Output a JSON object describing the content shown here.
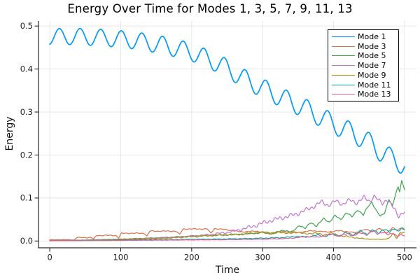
{
  "chart_data": {
    "type": "line",
    "title": "Energy Over Time for Modes 1, 3, 5, 7, 9, 11, 13",
    "xlabel": "Time",
    "ylabel": "Energy",
    "xlim": [
      -15.9,
      516.9
    ],
    "ylim": [
      -0.0158,
      0.5117
    ],
    "grid": true,
    "legend_position": "top-right",
    "xticks": {
      "values": [
        0,
        100,
        200,
        300,
        400,
        500
      ],
      "labels": [
        "0",
        "100",
        "200",
        "300",
        "400",
        "500"
      ]
    },
    "yticks": {
      "values": [
        0.0,
        0.1,
        0.2,
        0.3,
        0.4,
        0.5
      ],
      "labels": [
        "0.0",
        "0.1",
        "0.2",
        "0.3",
        "0.4",
        "0.5"
      ]
    },
    "colors": {
      "grid": "#e4e4e4",
      "spine": "#262626",
      "tick_text": "#1c1c1c",
      "title_text": "#000000"
    },
    "series": [
      {
        "name": "Mode 1",
        "color": "#009AFA",
        "width": 1.7,
        "seed": 1,
        "noise": 0,
        "noise_ref": 1,
        "osc": {
          "amplitude0": 0.0185,
          "amplitude_slope": 1.2e-05,
          "period": 29.1,
          "phase": -1
        },
        "points": [
          [
            0,
            0.4755
          ],
          [
            40,
            0.4755
          ],
          [
            80,
            0.4725
          ],
          [
            120,
            0.4665
          ],
          [
            160,
            0.4555
          ],
          [
            200,
            0.4395
          ],
          [
            240,
            0.411
          ],
          [
            280,
            0.372
          ],
          [
            320,
            0.339
          ],
          [
            360,
            0.308
          ],
          [
            400,
            0.2725
          ],
          [
            440,
            0.2405
          ],
          [
            480,
            0.1925
          ],
          [
            500,
            0.178
          ]
        ]
      },
      {
        "name": "Mode 3",
        "color": "#E26E46",
        "width": 1.2,
        "seed": 2,
        "noise": 0.0012,
        "noise_ref": 0.01,
        "points": [
          [
            0,
            0.003
          ],
          [
            30,
            0.003
          ],
          [
            34,
            0.002
          ],
          [
            38,
            0.008
          ],
          [
            58,
            0.008
          ],
          [
            62,
            0.005
          ],
          [
            66,
            0.013
          ],
          [
            93,
            0.013
          ],
          [
            97,
            0.007
          ],
          [
            101,
            0.018
          ],
          [
            133,
            0.018
          ],
          [
            137,
            0.011
          ],
          [
            141,
            0.023
          ],
          [
            178,
            0.023
          ],
          [
            183,
            0.015
          ],
          [
            188,
            0.028
          ],
          [
            222,
            0.028
          ],
          [
            227,
            0.018
          ],
          [
            232,
            0.029
          ],
          [
            250,
            0.026
          ],
          [
            270,
            0.021
          ],
          [
            290,
            0.023
          ],
          [
            310,
            0.019
          ],
          [
            330,
            0.022
          ],
          [
            350,
            0.02
          ],
          [
            370,
            0.024
          ],
          [
            390,
            0.021
          ],
          [
            410,
            0.024
          ],
          [
            430,
            0.019
          ],
          [
            445,
            0.027
          ],
          [
            455,
            0.022
          ],
          [
            465,
            0.029
          ],
          [
            475,
            0.019
          ],
          [
            483,
            0.031
          ],
          [
            490,
            0.024
          ],
          [
            495,
            0.031
          ],
          [
            500,
            0.026
          ]
        ]
      },
      {
        "name": "Mode 5",
        "color": "#3DA44D",
        "width": 1.2,
        "seed": 3,
        "noise": 0.002,
        "noise_ref": 0.02,
        "points": [
          [
            0,
            0.001
          ],
          [
            40,
            0.002
          ],
          [
            80,
            0.0035
          ],
          [
            120,
            0.0055
          ],
          [
            160,
            0.008
          ],
          [
            200,
            0.0115
          ],
          [
            240,
            0.0135
          ],
          [
            270,
            0.0155
          ],
          [
            300,
            0.02
          ],
          [
            315,
            0.018
          ],
          [
            330,
            0.025
          ],
          [
            342,
            0.021
          ],
          [
            352,
            0.037
          ],
          [
            360,
            0.029
          ],
          [
            368,
            0.043
          ],
          [
            376,
            0.035
          ],
          [
            386,
            0.052
          ],
          [
            394,
            0.044
          ],
          [
            402,
            0.059
          ],
          [
            410,
            0.05
          ],
          [
            418,
            0.066
          ],
          [
            426,
            0.056
          ],
          [
            434,
            0.073
          ],
          [
            442,
            0.06
          ],
          [
            448,
            0.079
          ],
          [
            454,
            0.091
          ],
          [
            460,
            0.071
          ],
          [
            466,
            0.057
          ],
          [
            472,
            0.066
          ],
          [
            478,
            0.098
          ],
          [
            483,
            0.081
          ],
          [
            487,
            0.106
          ],
          [
            491,
            0.126
          ],
          [
            493,
            0.116
          ],
          [
            496,
            0.141
          ],
          [
            500,
            0.12
          ]
        ]
      },
      {
        "name": "Mode 7",
        "color": "#C271D2",
        "width": 1.2,
        "seed": 4,
        "noise": 0.0055,
        "noise_ref": 0.04,
        "points": [
          [
            0,
            0.001
          ],
          [
            60,
            0.002
          ],
          [
            120,
            0.0045
          ],
          [
            180,
            0.009
          ],
          [
            220,
            0.014
          ],
          [
            250,
            0.02
          ],
          [
            270,
            0.027
          ],
          [
            290,
            0.036
          ],
          [
            310,
            0.047
          ],
          [
            330,
            0.055
          ],
          [
            350,
            0.064
          ],
          [
            368,
            0.077
          ],
          [
            383,
            0.091
          ],
          [
            393,
            0.083
          ],
          [
            403,
            0.093
          ],
          [
            413,
            0.086
          ],
          [
            423,
            0.095
          ],
          [
            433,
            0.089
          ],
          [
            443,
            0.101
          ],
          [
            451,
            0.093
          ],
          [
            457,
            0.104
          ],
          [
            463,
            0.095
          ],
          [
            469,
            0.088
          ],
          [
            475,
            0.097
          ],
          [
            481,
            0.084
          ],
          [
            487,
            0.071
          ],
          [
            492,
            0.058
          ],
          [
            496,
            0.065
          ],
          [
            500,
            0.066
          ]
        ]
      },
      {
        "name": "Mode 9",
        "color": "#AC8D18",
        "width": 1.2,
        "seed": 5,
        "noise": 0.002,
        "noise_ref": 0.012,
        "points": [
          [
            0,
            0.001
          ],
          [
            60,
            0.002
          ],
          [
            120,
            0.004
          ],
          [
            160,
            0.006
          ],
          [
            200,
            0.01
          ],
          [
            240,
            0.014
          ],
          [
            265,
            0.0155
          ],
          [
            285,
            0.018
          ],
          [
            300,
            0.02
          ],
          [
            313,
            0.016
          ],
          [
            325,
            0.021
          ],
          [
            337,
            0.017
          ],
          [
            349,
            0.021
          ],
          [
            361,
            0.016
          ],
          [
            373,
            0.019
          ],
          [
            385,
            0.014
          ],
          [
            397,
            0.018
          ],
          [
            409,
            0.012
          ],
          [
            421,
            0.01
          ],
          [
            433,
            0.007
          ],
          [
            445,
            0.005
          ],
          [
            457,
            0.004
          ],
          [
            469,
            0.004
          ],
          [
            478,
            0.006
          ],
          [
            484,
            0.017
          ],
          [
            489,
            0.007
          ],
          [
            494,
            0.02
          ],
          [
            500,
            0.018
          ]
        ]
      },
      {
        "name": "Mode 11",
        "color": "#00A9AD",
        "width": 1.2,
        "seed": 6,
        "noise": 0.0022,
        "noise_ref": 0.015,
        "points": [
          [
            0,
            0.0008
          ],
          [
            80,
            0.0018
          ],
          [
            160,
            0.003
          ],
          [
            240,
            0.0045
          ],
          [
            300,
            0.0065
          ],
          [
            330,
            0.008
          ],
          [
            348,
            0.011
          ],
          [
            362,
            0.009
          ],
          [
            376,
            0.0135
          ],
          [
            388,
            0.011
          ],
          [
            398,
            0.016
          ],
          [
            408,
            0.012
          ],
          [
            418,
            0.019
          ],
          [
            428,
            0.014
          ],
          [
            438,
            0.023
          ],
          [
            447,
            0.016
          ],
          [
            455,
            0.026
          ],
          [
            463,
            0.018
          ],
          [
            471,
            0.028
          ],
          [
            479,
            0.02
          ],
          [
            486,
            0.03
          ],
          [
            491,
            0.023
          ],
          [
            496,
            0.029
          ],
          [
            500,
            0.027
          ]
        ]
      },
      {
        "name": "Mode 13",
        "color": "#EC5D92",
        "width": 1.2,
        "seed": 7,
        "noise": 0.0022,
        "noise_ref": 0.015,
        "points": [
          [
            0,
            0.0005
          ],
          [
            80,
            0.001
          ],
          [
            160,
            0.002
          ],
          [
            240,
            0.003
          ],
          [
            300,
            0.0042
          ],
          [
            330,
            0.0055
          ],
          [
            350,
            0.008
          ],
          [
            364,
            0.011
          ],
          [
            377,
            0.009
          ],
          [
            389,
            0.013
          ],
          [
            399,
            0.015
          ],
          [
            409,
            0.012
          ],
          [
            419,
            0.017
          ],
          [
            429,
            0.013
          ],
          [
            439,
            0.019
          ],
          [
            447,
            0.015
          ],
          [
            455,
            0.023
          ],
          [
            462,
            0.017
          ],
          [
            469,
            0.021
          ],
          [
            477,
            0.014
          ],
          [
            484,
            0.019
          ],
          [
            490,
            0.011
          ],
          [
            495,
            0.014
          ],
          [
            500,
            0.012
          ]
        ]
      }
    ]
  }
}
